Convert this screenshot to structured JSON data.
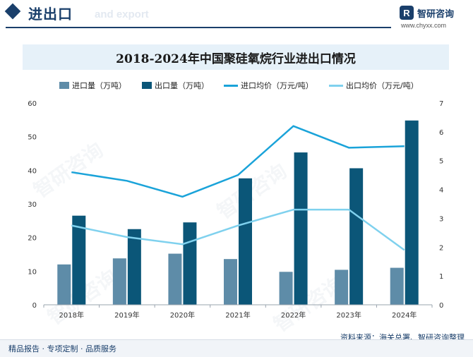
{
  "header": {
    "title": "进出口",
    "subtitle": "and export"
  },
  "logo": {
    "mark": "R",
    "name": "智研咨询",
    "url": "www.chyxx.com"
  },
  "watermark": "智研咨询",
  "colors": {
    "import_volume": "#5e8ca8",
    "export_volume": "#0b5678",
    "import_price": "#1aa3d9",
    "export_price": "#7fd1ee",
    "brand": "#1a3f6b"
  },
  "chart_data": {
    "type": "bar",
    "title": "2018-2024年中国聚硅氧烷行业进出口情况",
    "categories": [
      "2018年",
      "2019年",
      "2020年",
      "2021年",
      "2022年",
      "2023年",
      "2024年"
    ],
    "series": [
      {
        "name": "进口量（万吨）",
        "kind": "bar",
        "axis": "left",
        "values": [
          12.0,
          13.8,
          15.2,
          13.6,
          9.8,
          10.4,
          11.0
        ]
      },
      {
        "name": "出口量（万吨）",
        "kind": "bar",
        "axis": "left",
        "values": [
          26.5,
          22.5,
          24.5,
          37.6,
          45.3,
          40.6,
          54.8
        ]
      },
      {
        "name": "进口均价（万元/吨）",
        "kind": "line",
        "axis": "right",
        "values": [
          4.6,
          4.3,
          3.75,
          4.5,
          6.2,
          5.45,
          5.5
        ]
      },
      {
        "name": "出口均价（万元/吨）",
        "kind": "line",
        "axis": "right",
        "values": [
          2.75,
          2.35,
          2.1,
          2.75,
          3.3,
          3.3,
          1.9
        ]
      }
    ],
    "y_left": {
      "range": [
        0,
        60
      ],
      "ticks": [
        "0",
        "10",
        "20",
        "30",
        "40",
        "50",
        "60"
      ]
    },
    "y_right": {
      "range": [
        0,
        7
      ],
      "ticks": [
        "0",
        "1",
        "2",
        "3",
        "4",
        "5",
        "6",
        "7"
      ]
    },
    "legend": "top"
  },
  "footer": {
    "slogan": "精品报告 · 专项定制 · 品质服务",
    "source": "资料来源：海关总署、智研咨询整理"
  }
}
